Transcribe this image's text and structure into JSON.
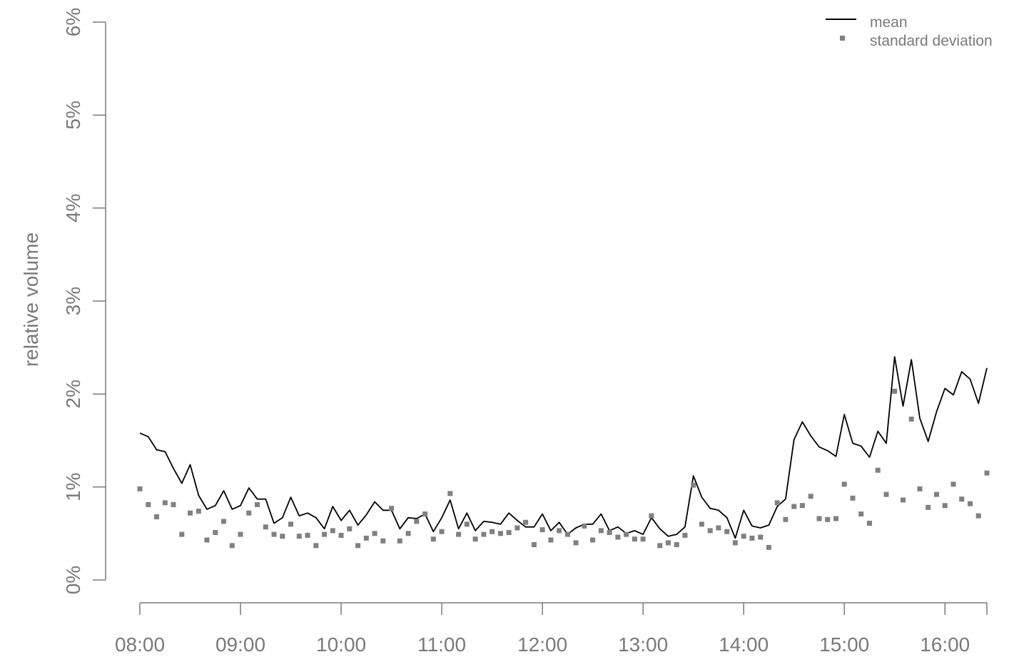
{
  "chart_data": {
    "type": "line",
    "title": "",
    "xlabel": "",
    "ylabel": "relative volume",
    "x_tick_labels": [
      "08:00",
      "09:00",
      "10:00",
      "11:00",
      "12:00",
      "13:00",
      "14:00",
      "15:00",
      "16:00"
    ],
    "y_tick_labels": [
      "0%",
      "1%",
      "2%",
      "3%",
      "4%",
      "5%",
      "6%"
    ],
    "xlim_minutes": [
      0,
      505
    ],
    "ylim": [
      0,
      6
    ],
    "x_start_time": "08:00",
    "interval_minutes": 5,
    "legend": {
      "placement": "top-right",
      "entries": [
        "mean",
        "standard deviation"
      ]
    },
    "series": [
      {
        "name": "mean",
        "style": "line",
        "color": "#000000",
        "values": [
          1.58,
          1.54,
          1.4,
          1.38,
          1.2,
          1.04,
          1.24,
          0.91,
          0.76,
          0.8,
          0.96,
          0.76,
          0.8,
          0.99,
          0.87,
          0.87,
          0.61,
          0.67,
          0.89,
          0.69,
          0.72,
          0.67,
          0.55,
          0.79,
          0.64,
          0.75,
          0.59,
          0.7,
          0.84,
          0.75,
          0.75,
          0.55,
          0.67,
          0.66,
          0.71,
          0.52,
          0.67,
          0.86,
          0.55,
          0.72,
          0.53,
          0.63,
          0.62,
          0.6,
          0.72,
          0.64,
          0.57,
          0.57,
          0.71,
          0.53,
          0.62,
          0.49,
          0.56,
          0.6,
          0.6,
          0.71,
          0.53,
          0.57,
          0.5,
          0.53,
          0.49,
          0.67,
          0.55,
          0.47,
          0.49,
          0.57,
          1.12,
          0.89,
          0.77,
          0.75,
          0.67,
          0.45,
          0.75,
          0.58,
          0.56,
          0.59,
          0.79,
          0.87,
          1.51,
          1.7,
          1.55,
          1.43,
          1.39,
          1.33,
          1.78,
          1.47,
          1.44,
          1.32,
          1.6,
          1.47,
          2.4,
          1.87,
          2.37,
          1.74,
          1.49,
          1.81,
          2.06,
          1.99,
          2.24,
          2.16,
          1.9,
          2.28
        ]
      },
      {
        "name": "standard deviation",
        "style": "points",
        "color": "#808080",
        "values": [
          0.98,
          0.81,
          0.68,
          0.83,
          0.81,
          0.49,
          0.72,
          0.74,
          0.43,
          0.51,
          0.63,
          0.37,
          0.49,
          0.72,
          0.81,
          0.57,
          0.49,
          0.47,
          0.6,
          0.47,
          0.48,
          0.37,
          0.49,
          0.53,
          0.48,
          0.55,
          0.37,
          0.45,
          0.5,
          0.42,
          0.77,
          0.42,
          0.5,
          0.63,
          0.71,
          0.44,
          0.52,
          0.93,
          0.49,
          0.6,
          0.44,
          0.49,
          0.52,
          0.5,
          0.51,
          0.56,
          0.62,
          0.38,
          0.54,
          0.43,
          0.53,
          0.49,
          0.4,
          0.58,
          0.43,
          0.53,
          0.51,
          0.46,
          0.49,
          0.44,
          0.44,
          0.69,
          0.37,
          0.4,
          0.38,
          0.48,
          1.02,
          0.6,
          0.53,
          0.56,
          0.52,
          0.4,
          0.47,
          0.45,
          0.46,
          0.35,
          0.83,
          0.65,
          0.79,
          0.8,
          0.9,
          0.66,
          0.65,
          0.66,
          1.03,
          0.88,
          0.71,
          0.61,
          1.18,
          0.92,
          2.03,
          0.86,
          1.73,
          0.98,
          0.78,
          0.92,
          0.8,
          1.03,
          0.87,
          0.82,
          0.69,
          1.15
        ]
      }
    ]
  }
}
